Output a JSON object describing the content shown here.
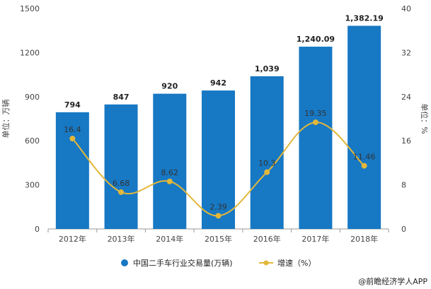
{
  "chart_data": {
    "type": "bar",
    "categories": [
      "2012年",
      "2013年",
      "2014年",
      "2015年",
      "2016年",
      "2017年",
      "2018年"
    ],
    "series": [
      {
        "name": "中国二手车行业交易量(万辆)",
        "type": "bar",
        "axis": "left",
        "values": [
          794,
          847,
          920,
          942,
          1039,
          1240.09,
          1382.19
        ],
        "labels": [
          "794",
          "847",
          "920",
          "942",
          "1,039",
          "1,240.09",
          "1,382.19"
        ]
      },
      {
        "name": "增速（%）",
        "type": "line",
        "axis": "right",
        "values": [
          16.4,
          6.68,
          8.62,
          2.39,
          10.3,
          19.35,
          11.46
        ],
        "labels": [
          "16.4",
          "6.68",
          "8.62",
          "2.39",
          "10.3",
          "19.35",
          "11.46"
        ]
      }
    ],
    "ylabel": "单位：万辆",
    "y2label": "单位：%",
    "ylim": [
      0,
      1500
    ],
    "yticks": [
      0,
      300,
      600,
      900,
      1200,
      1500
    ],
    "y2lim": [
      0,
      40
    ],
    "y2ticks": [
      0,
      8,
      16,
      24,
      32,
      40
    ],
    "grid": false,
    "legend_position": "bottom",
    "colors": {
      "bar": "#1778c4",
      "line": "#e2b73a"
    }
  },
  "source_note": "@前瞻经济学人APP"
}
